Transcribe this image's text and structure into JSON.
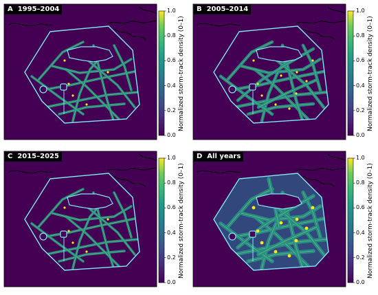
{
  "chart_data": [
    {
      "type": "heatmap",
      "panel_label": "A",
      "title": "1995–2004",
      "colorbar_label": "Normalized storm-track density (0–1)",
      "colorbar_ticks": [
        "1.0",
        "0.8",
        "0.6",
        "0.4",
        "0.2",
        "0.0"
      ],
      "range": [
        0,
        1
      ],
      "colormap": "viridis",
      "background_value": 0.0,
      "track_density": "sparse"
    },
    {
      "type": "heatmap",
      "panel_label": "B",
      "title": "2005–2014",
      "colorbar_label": "Normalized storm-track density (0–1)",
      "colorbar_ticks": [
        "1.0",
        "0.8",
        "0.6",
        "0.4",
        "0.2",
        "0.0"
      ],
      "range": [
        0,
        1
      ],
      "colormap": "viridis",
      "background_value": 0.0,
      "track_density": "moderate"
    },
    {
      "type": "heatmap",
      "panel_label": "C",
      "title": "2015–2025",
      "colorbar_label": "Normalized storm-track density (0–1)",
      "colorbar_ticks": [
        "1.0",
        "0.8",
        "0.6",
        "0.4",
        "0.2",
        "0.0"
      ],
      "range": [
        0,
        1
      ],
      "colormap": "viridis",
      "background_value": 0.0,
      "track_density": "sparse"
    },
    {
      "type": "heatmap",
      "panel_label": "D",
      "title": "All years",
      "colorbar_label": "Normalized storm-track density (0–1)",
      "colorbar_ticks": [
        "1.0",
        "0.8",
        "0.6",
        "0.4",
        "0.2",
        "0.0"
      ],
      "range": [
        0,
        1
      ],
      "colormap": "viridis",
      "background_value": 0.0,
      "track_density": "dense"
    }
  ],
  "colors": {
    "background": "#440154",
    "outline": "#7fe8f5",
    "track": "#2a8f8a",
    "track_hi": "#5ec962",
    "hotspot": "#fde725"
  }
}
